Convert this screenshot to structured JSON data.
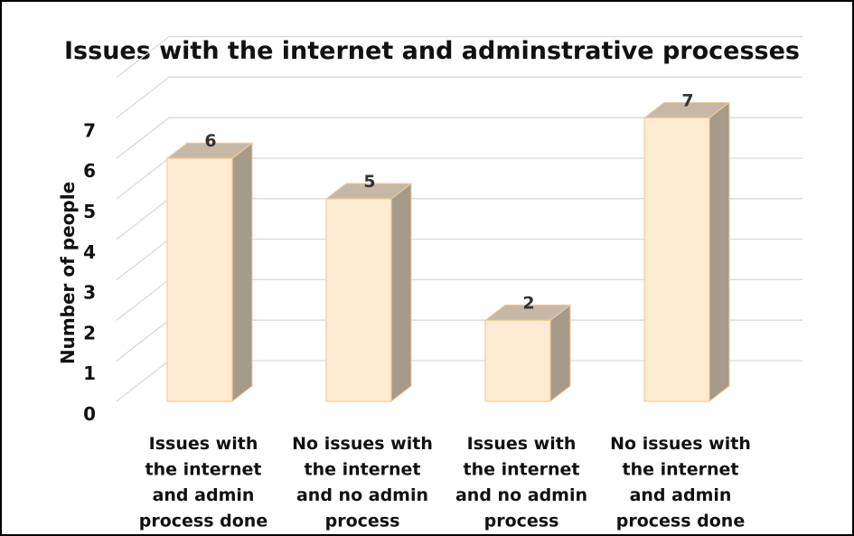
{
  "chart_data": {
    "type": "bar",
    "title": "Issues with the internet and adminstrative processes",
    "ylabel": "Number of people",
    "xlabel": "",
    "categories": [
      [
        "Issues with",
        "the internet",
        "and admin",
        "process done"
      ],
      [
        "No issues with",
        "the internet",
        "and no admin",
        "process"
      ],
      [
        "Issues with",
        "the internet",
        "and no admin",
        "process"
      ],
      [
        "No issues with",
        "the internet",
        "and admin",
        "process done"
      ]
    ],
    "values": [
      6,
      5,
      2,
      7
    ],
    "data_labels": [
      "6",
      "5",
      "2",
      "7"
    ],
    "y_ticks": [
      "0",
      "1",
      "2",
      "3",
      "4",
      "5",
      "6",
      "7"
    ],
    "ylim": [
      0,
      7
    ],
    "grid": true,
    "legend": "none",
    "style": "3d-column"
  },
  "colors": {
    "bar_face": "#fdebd3",
    "bar_top": "#c6b8a5",
    "bar_side": "#a69a89",
    "bar_edge": "#f3cc9a",
    "grid": "#d9d9d9"
  }
}
